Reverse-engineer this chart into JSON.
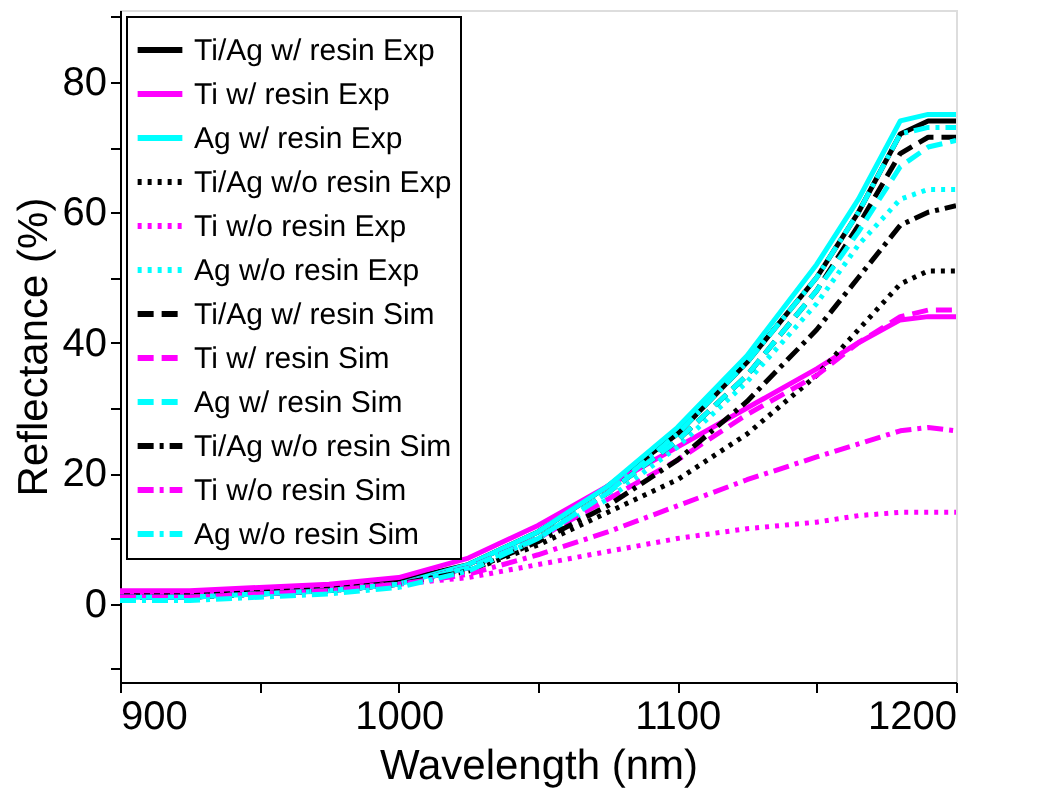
{
  "chart_data": {
    "type": "line",
    "xlabel": "Wavelength (nm)",
    "ylabel": "Reflectance (%)",
    "x": [
      900,
      925,
      950,
      975,
      1000,
      1025,
      1050,
      1075,
      1100,
      1125,
      1150,
      1165,
      1180,
      1190,
      1200
    ],
    "xlim": [
      900,
      1200
    ],
    "xticks": [
      900,
      {
        "value": 950,
        "label": null
      },
      1000,
      {
        "value": 1050,
        "label": null
      },
      1100,
      {
        "value": 1150,
        "label": null
      },
      1200
    ],
    "ylim": [
      -12,
      91
    ],
    "yticks": [
      {
        "value": -10,
        "label": null
      },
      0,
      {
        "value": 10,
        "label": null
      },
      20,
      {
        "value": 30,
        "label": null
      },
      40,
      {
        "value": 50,
        "label": null
      },
      60,
      {
        "value": 70,
        "label": null
      },
      80,
      {
        "value": 90,
        "label": null
      }
    ],
    "grid": false,
    "legend": "top left",
    "series": [
      {
        "name": "Ti/Ag w/ resin Exp",
        "color": "#000000",
        "line_style": "solid",
        "values": [
          1.5,
          1.5,
          2,
          2.5,
          3.5,
          6,
          11,
          18,
          26,
          37,
          50,
          60,
          72,
          74,
          74
        ]
      },
      {
        "name": "Ti w/ resin Exp",
        "color": "#ff00ff",
        "line_style": "solid",
        "values": [
          2,
          2,
          2.5,
          3,
          4,
          7,
          12,
          18,
          24,
          30,
          36,
          40,
          43.5,
          44,
          44
        ]
      },
      {
        "name": "Ag w/ resin Exp",
        "color": "#00ffff",
        "line_style": "solid",
        "values": [
          1,
          1,
          1.5,
          2,
          3,
          6,
          11,
          18,
          27,
          38,
          52,
          62,
          74,
          75,
          75
        ]
      },
      {
        "name": "Ti/Ag w/o resin Exp",
        "color": "#000000",
        "line_style": "dotted",
        "values": [
          1,
          1,
          1.5,
          2,
          3,
          5,
          9,
          14,
          19,
          26,
          35,
          42,
          49,
          51,
          51
        ]
      },
      {
        "name": "Ti w/o resin Exp",
        "color": "#ff00ff",
        "line_style": "dotted",
        "values": [
          1.5,
          1.5,
          2,
          2.5,
          3,
          4,
          6,
          8,
          10,
          11.5,
          12.5,
          13.5,
          14,
          14,
          14
        ]
      },
      {
        "name": "Ag w/o resin Exp",
        "color": "#00ffff",
        "line_style": "dotted",
        "values": [
          1,
          1,
          1.5,
          2,
          3,
          5.5,
          10,
          16,
          24,
          34,
          46,
          55,
          62,
          63.5,
          63.5
        ]
      },
      {
        "name": "Ti/Ag w/ resin Sim",
        "color": "#000000",
        "line_style": "dashed",
        "values": [
          1,
          1,
          1.5,
          2,
          3,
          5.5,
          10,
          17,
          25,
          35,
          48,
          58,
          69,
          71.5,
          71.5
        ]
      },
      {
        "name": "Ti w/ resin Sim",
        "color": "#ff00ff",
        "line_style": "dashed",
        "values": [
          1,
          1,
          1.5,
          2,
          3,
          5.5,
          10,
          16,
          22,
          29,
          35,
          40,
          44,
          45,
          45
        ]
      },
      {
        "name": "Ag w/ resin Sim",
        "color": "#00ffff",
        "line_style": "dashed",
        "values": [
          1,
          1,
          1.5,
          2,
          3,
          5.5,
          10,
          17,
          25,
          35,
          48,
          57,
          67,
          70,
          71
        ]
      },
      {
        "name": "Ti/Ag w/o resin Sim",
        "color": "#000000",
        "line_style": "dashdot",
        "values": [
          1,
          1,
          1.5,
          2,
          3,
          5,
          9.5,
          15,
          22,
          31,
          42,
          50,
          58,
          60,
          61
        ]
      },
      {
        "name": "Ti w/o resin Sim",
        "color": "#ff00ff",
        "line_style": "dashdot",
        "values": [
          1,
          1,
          1.5,
          2,
          3,
          4.5,
          7.5,
          11,
          15,
          19,
          22.5,
          24.5,
          26.5,
          27,
          26.5
        ]
      },
      {
        "name": "Ag w/o resin Sim",
        "color": "#00ffff",
        "line_style": "dashdot",
        "values": [
          0.5,
          0.5,
          1,
          1.5,
          2.5,
          5,
          10,
          17,
          26,
          37,
          50,
          60,
          72,
          73,
          73
        ]
      }
    ]
  }
}
